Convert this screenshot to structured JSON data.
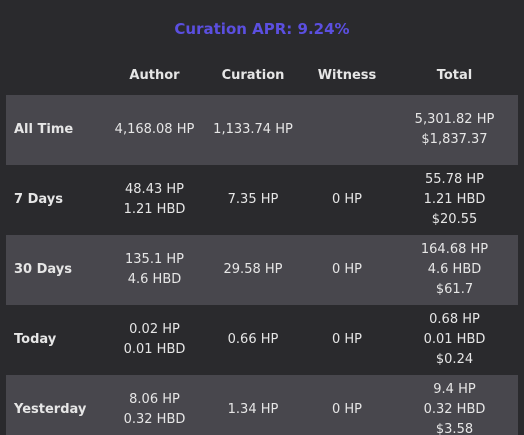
{
  "header": {
    "curation_apr": "Curation APR: 9.24%"
  },
  "table": {
    "columns": [
      "",
      "Author",
      "Curation",
      "Witness",
      "Total"
    ],
    "rows": [
      {
        "label": "All Time",
        "author": [
          "4,168.08 HP"
        ],
        "curation": [
          "1,133.74 HP"
        ],
        "witness": [],
        "total": [
          "5,301.82 HP",
          "$1,837.37"
        ]
      },
      {
        "label": "7 Days",
        "author": [
          "48.43 HP",
          "1.21 HBD"
        ],
        "curation": [
          "7.35 HP"
        ],
        "witness": [
          "0 HP"
        ],
        "total": [
          "55.78 HP",
          "1.21 HBD",
          "$20.55"
        ]
      },
      {
        "label": "30 Days",
        "author": [
          "135.1 HP",
          "4.6 HBD"
        ],
        "curation": [
          "29.58 HP"
        ],
        "witness": [
          "0 HP"
        ],
        "total": [
          "164.68 HP",
          "4.6 HBD",
          "$61.7"
        ]
      },
      {
        "label": "Today",
        "author": [
          "0.02 HP",
          "0.01 HBD"
        ],
        "curation": [
          "0.66 HP"
        ],
        "witness": [
          "0 HP"
        ],
        "total": [
          "0.68 HP",
          "0.01 HBD",
          "$0.24"
        ]
      },
      {
        "label": "Yesterday",
        "author": [
          "8.06 HP",
          "0.32 HBD"
        ],
        "curation": [
          "1.34 HP"
        ],
        "witness": [
          "0 HP"
        ],
        "total": [
          "9.4 HP",
          "0.32 HBD",
          "$3.58"
        ]
      }
    ]
  }
}
